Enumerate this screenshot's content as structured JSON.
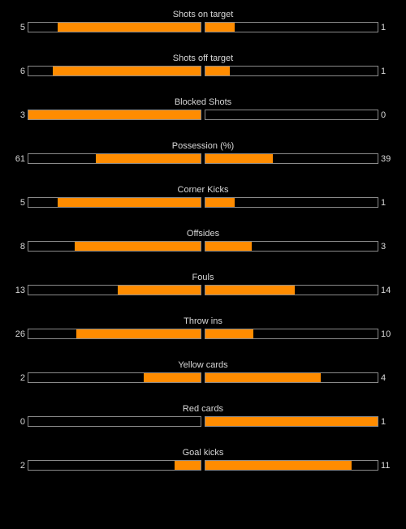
{
  "colors": {
    "background": "#000000",
    "text": "#d8d8d8",
    "bar_border": "#8a8a8a",
    "bar_fill": "#ff8c00"
  },
  "stats": [
    {
      "label": "Shots on target",
      "home": "5",
      "away": "1",
      "home_fill": 0.83,
      "away_fill": 0.17
    },
    {
      "label": "Shots off target",
      "home": "6",
      "away": "1",
      "home_fill": 0.86,
      "away_fill": 0.14
    },
    {
      "label": "Blocked Shots",
      "home": "3",
      "away": "0",
      "home_fill": 1.0,
      "away_fill": 0.0
    },
    {
      "label": "Possession (%)",
      "home": "61",
      "away": "39",
      "home_fill": 0.61,
      "away_fill": 0.39
    },
    {
      "label": "Corner Kicks",
      "home": "5",
      "away": "1",
      "home_fill": 0.83,
      "away_fill": 0.17
    },
    {
      "label": "Offsides",
      "home": "8",
      "away": "3",
      "home_fill": 0.73,
      "away_fill": 0.27
    },
    {
      "label": "Fouls",
      "home": "13",
      "away": "14",
      "home_fill": 0.48,
      "away_fill": 0.52
    },
    {
      "label": "Throw ins",
      "home": "26",
      "away": "10",
      "home_fill": 0.72,
      "away_fill": 0.28
    },
    {
      "label": "Yellow cards",
      "home": "2",
      "away": "4",
      "home_fill": 0.33,
      "away_fill": 0.67
    },
    {
      "label": "Red cards",
      "home": "0",
      "away": "1",
      "home_fill": 0.0,
      "away_fill": 1.0
    },
    {
      "label": "Goal kicks",
      "home": "2",
      "away": "11",
      "home_fill": 0.15,
      "away_fill": 0.85
    }
  ]
}
